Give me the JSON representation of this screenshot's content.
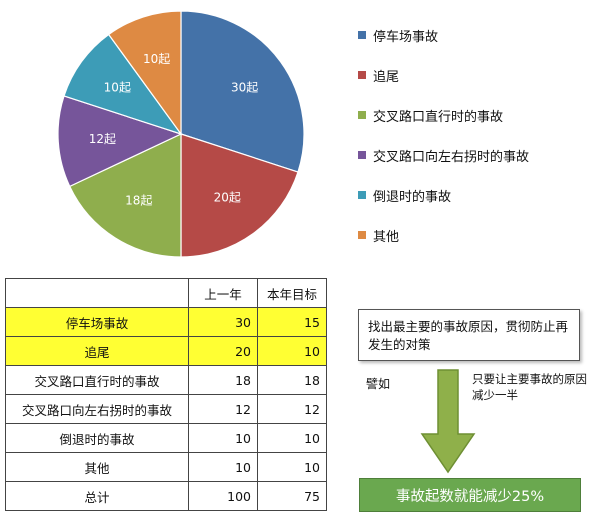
{
  "chart_data": {
    "type": "pie",
    "unit_suffix": "起",
    "slices": [
      {
        "label": "停车场事故",
        "value": 30,
        "data_label": "30起",
        "color": "#4472a8"
      },
      {
        "label": "追尾",
        "value": 20,
        "data_label": "20起",
        "color": "#b54a47"
      },
      {
        "label": "交叉路口直行时的事故",
        "value": 18,
        "data_label": "18起",
        "color": "#8fae4d"
      },
      {
        "label": "交叉路口向左右拐时的事故",
        "value": 12,
        "data_label": "12起",
        "color": "#76559a"
      },
      {
        "label": "倒退时的事故",
        "value": 10,
        "data_label": "10起",
        "color": "#3d9cb7"
      },
      {
        "label": "其他",
        "value": 10,
        "data_label": "10起",
        "color": "#de8a43"
      }
    ],
    "legend_position": "right"
  },
  "table": {
    "headers": [
      "",
      "上一年",
      "本年目标"
    ],
    "rows": [
      {
        "name": "停车场事故",
        "prev": "30",
        "goal": "15",
        "highlight": true
      },
      {
        "name": "追尾",
        "prev": "20",
        "goal": "10",
        "highlight": true
      },
      {
        "name": "交叉路口直行时的事故",
        "prev": "18",
        "goal": "18",
        "highlight": false
      },
      {
        "name": "交叉路口向左右拐时的事故",
        "prev": "12",
        "goal": "12",
        "highlight": false
      },
      {
        "name": "倒退时的事故",
        "prev": "10",
        "goal": "10",
        "highlight": false
      },
      {
        "name": "其他",
        "prev": "10",
        "goal": "10",
        "highlight": false
      },
      {
        "name": "总计",
        "prev": "100",
        "goal": "75",
        "highlight": false
      }
    ]
  },
  "note": {
    "text": "找出最主要的事故原因，贯彻防止再发生的对策"
  },
  "arrow": {
    "left_label": "譬如",
    "right_label": "只要让主要事故的原因减少一半",
    "color": "#8fb04a"
  },
  "result": {
    "text": "事故起数就能减少25%",
    "color": "#6aa84f"
  },
  "colors": {
    "highlight": "#ffff33"
  }
}
